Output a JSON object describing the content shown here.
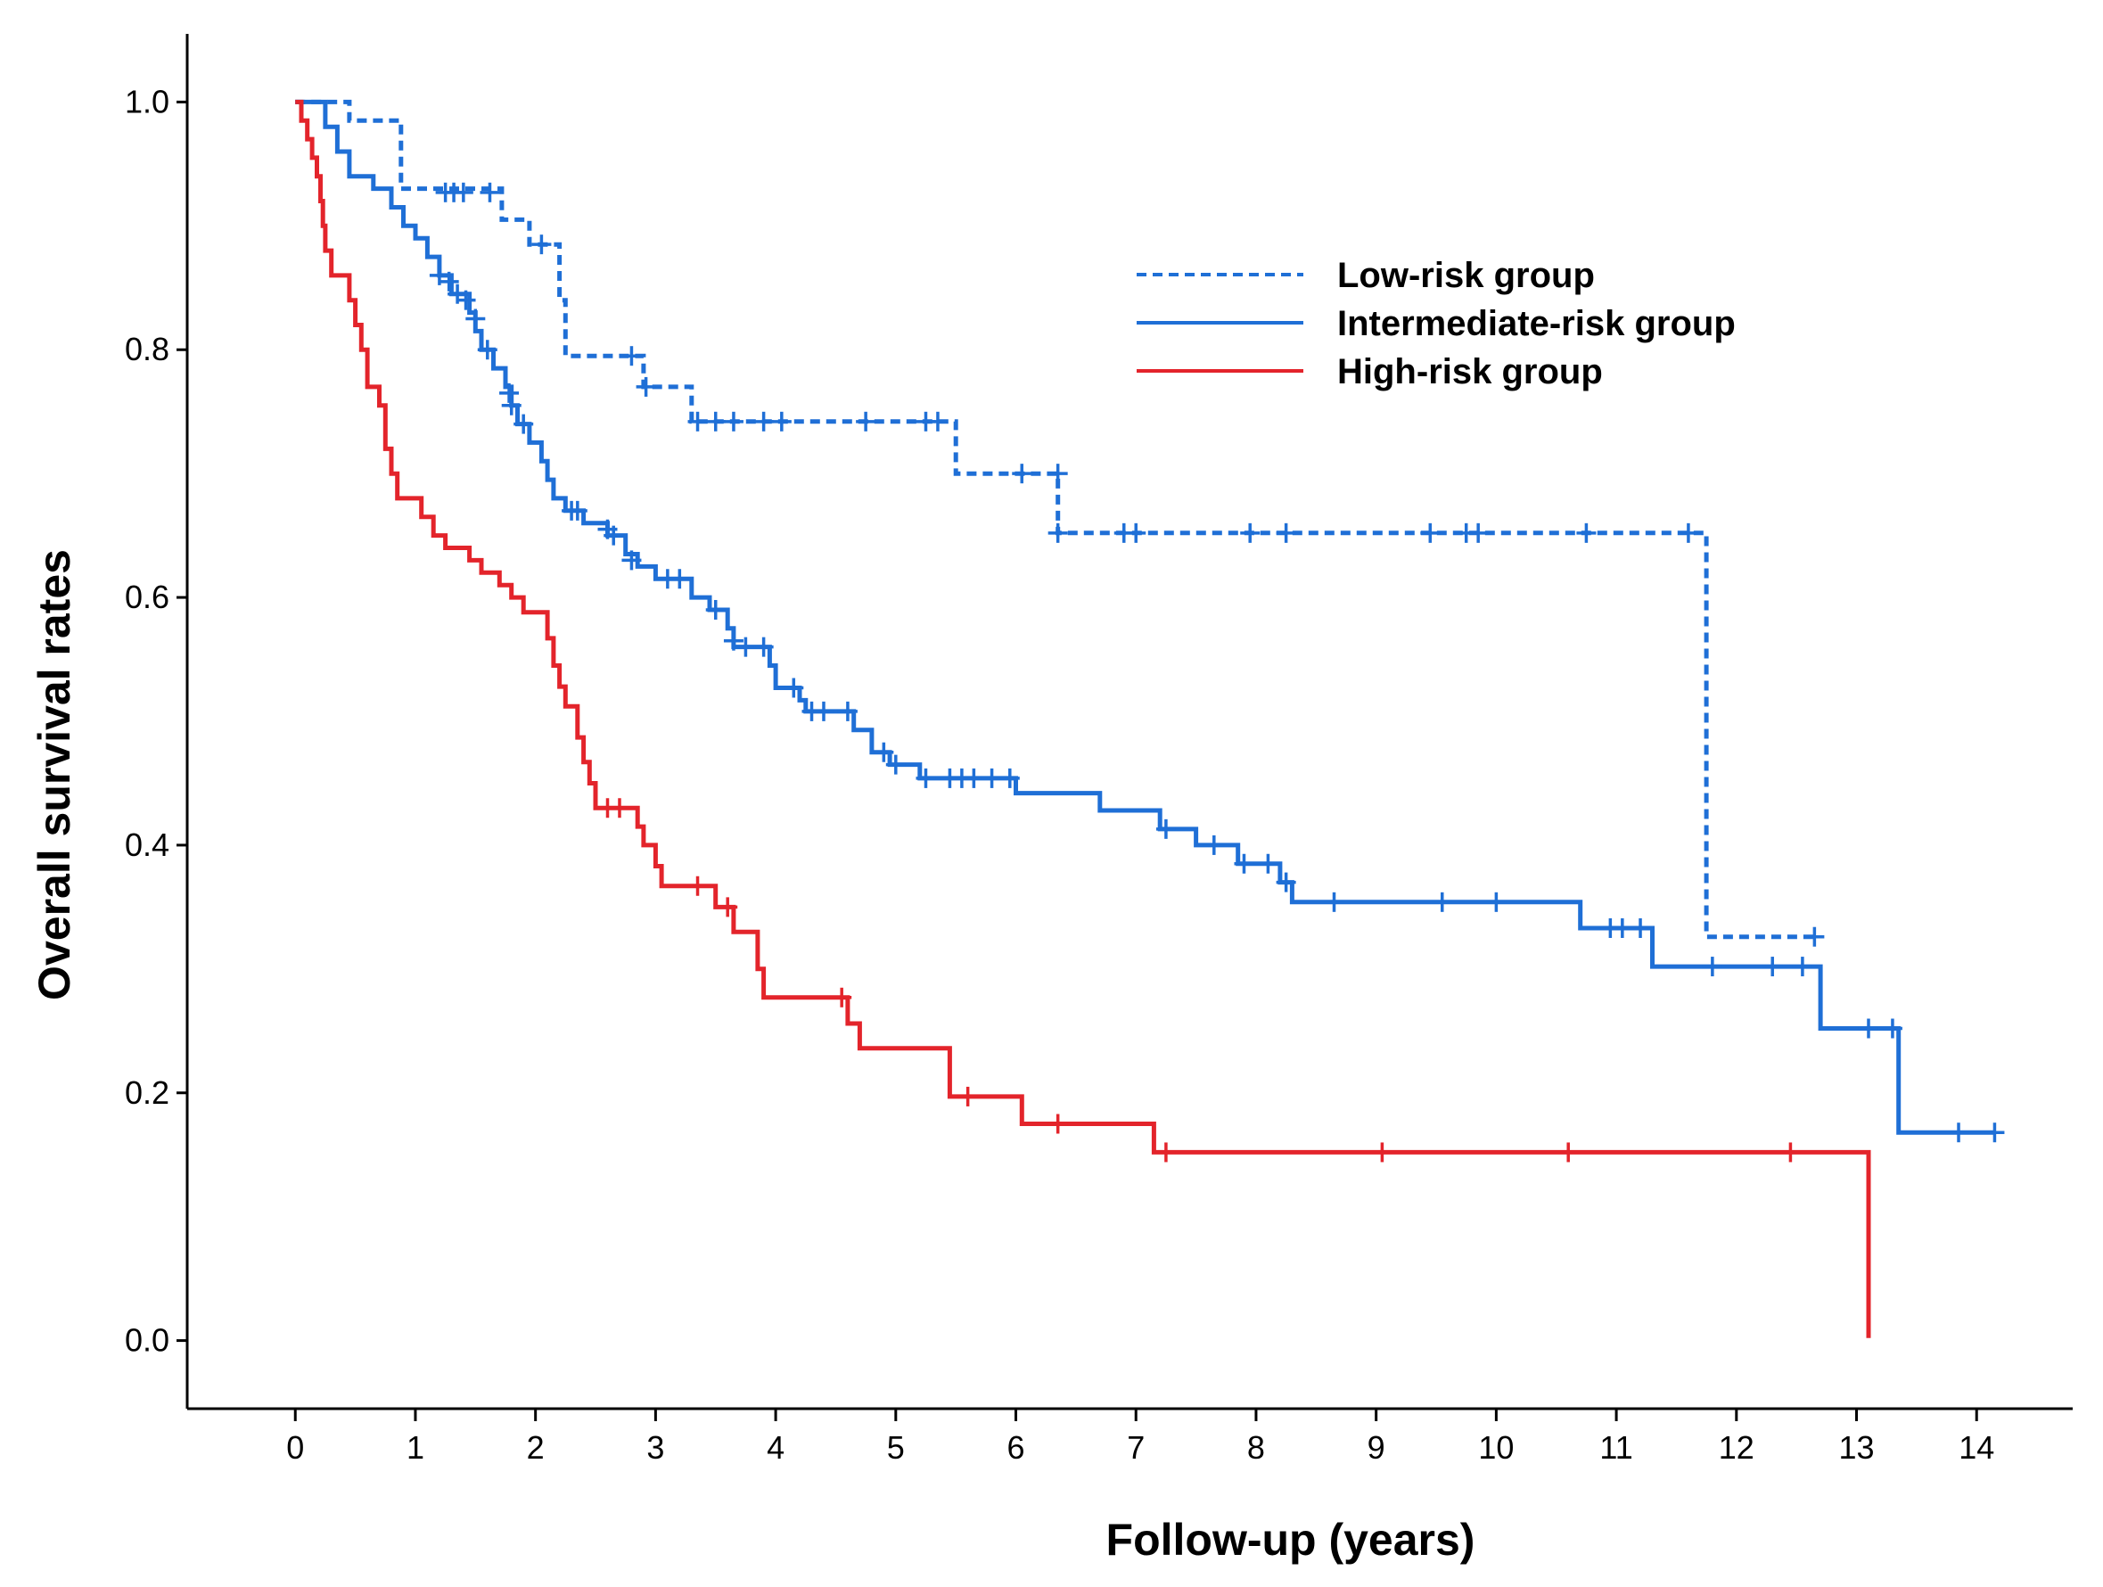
{
  "chart_data": {
    "type": "line",
    "subtype": "kaplan-meier",
    "title": "",
    "xlabel": "Follow-up (years)",
    "ylabel": "Overall survival rates",
    "xlim": [
      -0.9,
      14.8
    ],
    "ylim": [
      -0.055,
      1.055
    ],
    "x_ticks": [
      0,
      1,
      2,
      3,
      4,
      5,
      6,
      7,
      8,
      9,
      10,
      11,
      12,
      13,
      14
    ],
    "y_ticks": [
      0.0,
      0.2,
      0.4,
      0.6,
      0.8,
      1.0
    ],
    "y_tick_labels": [
      "0.0",
      "0.2",
      "0.4",
      "0.6",
      "0.8",
      "1.0"
    ],
    "legend_position": "top-right",
    "series": [
      {
        "name": "Low-risk group",
        "color": "#1f6fd6",
        "dash": "dashed",
        "steps": [
          [
            0,
            1.0
          ],
          [
            0.45,
            1.0
          ],
          [
            0.45,
            0.985
          ],
          [
            0.88,
            0.985
          ],
          [
            0.88,
            0.93
          ],
          [
            1.72,
            0.93
          ],
          [
            1.72,
            0.905
          ],
          [
            1.95,
            0.905
          ],
          [
            1.95,
            0.885
          ],
          [
            2.2,
            0.885
          ],
          [
            2.2,
            0.84
          ],
          [
            2.25,
            0.84
          ],
          [
            2.25,
            0.795
          ],
          [
            2.9,
            0.795
          ],
          [
            2.9,
            0.77
          ],
          [
            3.3,
            0.77
          ],
          [
            3.3,
            0.742
          ],
          [
            5.5,
            0.742
          ],
          [
            5.5,
            0.7
          ],
          [
            6.35,
            0.7
          ],
          [
            6.35,
            0.652
          ],
          [
            11.75,
            0.652
          ],
          [
            11.75,
            0.326
          ],
          [
            12.65,
            0.326
          ]
        ],
        "censors": [
          [
            1.25,
            0.927
          ],
          [
            1.32,
            0.927
          ],
          [
            1.4,
            0.927
          ],
          [
            1.62,
            0.927
          ],
          [
            2.05,
            0.885
          ],
          [
            2.8,
            0.795
          ],
          [
            2.92,
            0.77
          ],
          [
            3.35,
            0.742
          ],
          [
            3.5,
            0.742
          ],
          [
            3.65,
            0.742
          ],
          [
            3.9,
            0.742
          ],
          [
            4.05,
            0.742
          ],
          [
            4.75,
            0.742
          ],
          [
            5.25,
            0.742
          ],
          [
            5.35,
            0.742
          ],
          [
            6.05,
            0.7
          ],
          [
            6.35,
            0.7
          ],
          [
            6.35,
            0.652
          ],
          [
            6.9,
            0.652
          ],
          [
            7.0,
            0.652
          ],
          [
            7.95,
            0.652
          ],
          [
            8.25,
            0.652
          ],
          [
            9.45,
            0.652
          ],
          [
            9.75,
            0.652
          ],
          [
            9.85,
            0.652
          ],
          [
            10.75,
            0.652
          ],
          [
            11.6,
            0.652
          ],
          [
            12.65,
            0.326
          ]
        ]
      },
      {
        "name": "Intermediate-risk group",
        "color": "#1f6fd6",
        "dash": "solid",
        "steps": [
          [
            0,
            1.0
          ],
          [
            0.25,
            1.0
          ],
          [
            0.25,
            0.98
          ],
          [
            0.35,
            0.98
          ],
          [
            0.35,
            0.96
          ],
          [
            0.45,
            0.96
          ],
          [
            0.45,
            0.94
          ],
          [
            0.65,
            0.94
          ],
          [
            0.65,
            0.93
          ],
          [
            0.8,
            0.93
          ],
          [
            0.8,
            0.915
          ],
          [
            0.9,
            0.915
          ],
          [
            0.9,
            0.9
          ],
          [
            1.0,
            0.9
          ],
          [
            1.0,
            0.89
          ],
          [
            1.1,
            0.89
          ],
          [
            1.1,
            0.875
          ],
          [
            1.2,
            0.875
          ],
          [
            1.2,
            0.86
          ],
          [
            1.3,
            0.86
          ],
          [
            1.3,
            0.845
          ],
          [
            1.45,
            0.845
          ],
          [
            1.45,
            0.83
          ],
          [
            1.5,
            0.83
          ],
          [
            1.5,
            0.815
          ],
          [
            1.55,
            0.815
          ],
          [
            1.55,
            0.8
          ],
          [
            1.65,
            0.8
          ],
          [
            1.65,
            0.785
          ],
          [
            1.75,
            0.785
          ],
          [
            1.75,
            0.77
          ],
          [
            1.8,
            0.77
          ],
          [
            1.8,
            0.755
          ],
          [
            1.85,
            0.755
          ],
          [
            1.85,
            0.74
          ],
          [
            1.95,
            0.74
          ],
          [
            1.95,
            0.725
          ],
          [
            2.05,
            0.725
          ],
          [
            2.05,
            0.71
          ],
          [
            2.1,
            0.71
          ],
          [
            2.1,
            0.695
          ],
          [
            2.15,
            0.695
          ],
          [
            2.15,
            0.68
          ],
          [
            2.25,
            0.68
          ],
          [
            2.25,
            0.67
          ],
          [
            2.4,
            0.67
          ],
          [
            2.4,
            0.66
          ],
          [
            2.6,
            0.66
          ],
          [
            2.6,
            0.65
          ],
          [
            2.75,
            0.65
          ],
          [
            2.75,
            0.635
          ],
          [
            2.85,
            0.635
          ],
          [
            2.85,
            0.625
          ],
          [
            3.0,
            0.625
          ],
          [
            3.0,
            0.615
          ],
          [
            3.3,
            0.615
          ],
          [
            3.3,
            0.6
          ],
          [
            3.45,
            0.6
          ],
          [
            3.45,
            0.59
          ],
          [
            3.6,
            0.59
          ],
          [
            3.6,
            0.575
          ],
          [
            3.65,
            0.575
          ],
          [
            3.65,
            0.56
          ],
          [
            3.95,
            0.56
          ],
          [
            3.95,
            0.545
          ],
          [
            4.0,
            0.545
          ],
          [
            4.0,
            0.527
          ],
          [
            4.2,
            0.527
          ],
          [
            4.2,
            0.517
          ],
          [
            4.25,
            0.517
          ],
          [
            4.25,
            0.508
          ],
          [
            4.65,
            0.508
          ],
          [
            4.65,
            0.493
          ],
          [
            4.8,
            0.493
          ],
          [
            4.8,
            0.475
          ],
          [
            4.95,
            0.475
          ],
          [
            4.95,
            0.465
          ],
          [
            5.2,
            0.465
          ],
          [
            5.2,
            0.454
          ],
          [
            6.0,
            0.454
          ],
          [
            6.0,
            0.442
          ],
          [
            6.7,
            0.442
          ],
          [
            6.7,
            0.428
          ],
          [
            7.2,
            0.428
          ],
          [
            7.2,
            0.413
          ],
          [
            7.5,
            0.413
          ],
          [
            7.5,
            0.4
          ],
          [
            7.85,
            0.4
          ],
          [
            7.85,
            0.385
          ],
          [
            8.2,
            0.385
          ],
          [
            8.2,
            0.37
          ],
          [
            8.3,
            0.37
          ],
          [
            8.3,
            0.354
          ],
          [
            10.7,
            0.354
          ],
          [
            10.7,
            0.333
          ],
          [
            11.3,
            0.333
          ],
          [
            11.3,
            0.302
          ],
          [
            12.7,
            0.302
          ],
          [
            12.7,
            0.252
          ],
          [
            13.35,
            0.252
          ],
          [
            13.35,
            0.168
          ],
          [
            14.15,
            0.168
          ]
        ],
        "censors": [
          [
            1.2,
            0.86
          ],
          [
            1.28,
            0.855
          ],
          [
            1.35,
            0.845
          ],
          [
            1.42,
            0.84
          ],
          [
            1.5,
            0.825
          ],
          [
            1.6,
            0.8
          ],
          [
            1.78,
            0.765
          ],
          [
            1.8,
            0.755
          ],
          [
            1.9,
            0.74
          ],
          [
            2.3,
            0.67
          ],
          [
            2.35,
            0.67
          ],
          [
            2.6,
            0.655
          ],
          [
            2.65,
            0.65
          ],
          [
            2.8,
            0.63
          ],
          [
            3.1,
            0.615
          ],
          [
            3.2,
            0.615
          ],
          [
            3.5,
            0.59
          ],
          [
            3.65,
            0.565
          ],
          [
            3.75,
            0.56
          ],
          [
            3.9,
            0.56
          ],
          [
            4.15,
            0.527
          ],
          [
            4.3,
            0.508
          ],
          [
            4.4,
            0.508
          ],
          [
            4.6,
            0.508
          ],
          [
            4.9,
            0.475
          ],
          [
            5.0,
            0.465
          ],
          [
            5.25,
            0.454
          ],
          [
            5.45,
            0.454
          ],
          [
            5.55,
            0.454
          ],
          [
            5.65,
            0.454
          ],
          [
            5.8,
            0.454
          ],
          [
            5.95,
            0.454
          ],
          [
            7.25,
            0.413
          ],
          [
            7.65,
            0.4
          ],
          [
            7.9,
            0.385
          ],
          [
            8.1,
            0.385
          ],
          [
            8.25,
            0.37
          ],
          [
            8.65,
            0.354
          ],
          [
            9.55,
            0.354
          ],
          [
            10.0,
            0.354
          ],
          [
            10.95,
            0.333
          ],
          [
            11.05,
            0.333
          ],
          [
            11.2,
            0.333
          ],
          [
            11.8,
            0.302
          ],
          [
            12.3,
            0.302
          ],
          [
            12.55,
            0.302
          ],
          [
            13.1,
            0.252
          ],
          [
            13.3,
            0.252
          ],
          [
            13.85,
            0.168
          ],
          [
            14.15,
            0.168
          ]
        ]
      },
      {
        "name": "High-risk group",
        "color": "#e3242b",
        "dash": "solid",
        "steps": [
          [
            0,
            1.0
          ],
          [
            0.05,
            1.0
          ],
          [
            0.05,
            0.985
          ],
          [
            0.1,
            0.985
          ],
          [
            0.1,
            0.97
          ],
          [
            0.14,
            0.97
          ],
          [
            0.14,
            0.955
          ],
          [
            0.18,
            0.955
          ],
          [
            0.18,
            0.94
          ],
          [
            0.21,
            0.94
          ],
          [
            0.21,
            0.92
          ],
          [
            0.23,
            0.92
          ],
          [
            0.23,
            0.9
          ],
          [
            0.25,
            0.9
          ],
          [
            0.25,
            0.88
          ],
          [
            0.3,
            0.88
          ],
          [
            0.3,
            0.86
          ],
          [
            0.45,
            0.86
          ],
          [
            0.45,
            0.84
          ],
          [
            0.5,
            0.84
          ],
          [
            0.5,
            0.82
          ],
          [
            0.55,
            0.82
          ],
          [
            0.55,
            0.8
          ],
          [
            0.6,
            0.8
          ],
          [
            0.6,
            0.77
          ],
          [
            0.7,
            0.77
          ],
          [
            0.7,
            0.755
          ],
          [
            0.75,
            0.755
          ],
          [
            0.75,
            0.72
          ],
          [
            0.8,
            0.72
          ],
          [
            0.8,
            0.7
          ],
          [
            0.85,
            0.7
          ],
          [
            0.85,
            0.68
          ],
          [
            1.05,
            0.68
          ],
          [
            1.05,
            0.665
          ],
          [
            1.15,
            0.665
          ],
          [
            1.15,
            0.65
          ],
          [
            1.25,
            0.65
          ],
          [
            1.25,
            0.64
          ],
          [
            1.45,
            0.64
          ],
          [
            1.45,
            0.63
          ],
          [
            1.55,
            0.63
          ],
          [
            1.55,
            0.62
          ],
          [
            1.7,
            0.62
          ],
          [
            1.7,
            0.61
          ],
          [
            1.8,
            0.61
          ],
          [
            1.8,
            0.6
          ],
          [
            1.9,
            0.6
          ],
          [
            1.9,
            0.588
          ],
          [
            2.1,
            0.588
          ],
          [
            2.1,
            0.567
          ],
          [
            2.15,
            0.567
          ],
          [
            2.15,
            0.545
          ],
          [
            2.2,
            0.545
          ],
          [
            2.2,
            0.528
          ],
          [
            2.25,
            0.528
          ],
          [
            2.25,
            0.512
          ],
          [
            2.35,
            0.512
          ],
          [
            2.35,
            0.487
          ],
          [
            2.4,
            0.487
          ],
          [
            2.4,
            0.467
          ],
          [
            2.45,
            0.467
          ],
          [
            2.45,
            0.45
          ],
          [
            2.5,
            0.45
          ],
          [
            2.5,
            0.43
          ],
          [
            2.85,
            0.43
          ],
          [
            2.85,
            0.415
          ],
          [
            2.9,
            0.415
          ],
          [
            2.9,
            0.4
          ],
          [
            3.0,
            0.4
          ],
          [
            3.0,
            0.383
          ],
          [
            3.05,
            0.383
          ],
          [
            3.05,
            0.367
          ],
          [
            3.5,
            0.367
          ],
          [
            3.5,
            0.35
          ],
          [
            3.65,
            0.35
          ],
          [
            3.65,
            0.33
          ],
          [
            3.85,
            0.33
          ],
          [
            3.85,
            0.3
          ],
          [
            3.9,
            0.3
          ],
          [
            3.9,
            0.277
          ],
          [
            4.6,
            0.277
          ],
          [
            4.6,
            0.256
          ],
          [
            4.7,
            0.256
          ],
          [
            4.7,
            0.236
          ],
          [
            5.45,
            0.236
          ],
          [
            5.45,
            0.197
          ],
          [
            6.05,
            0.197
          ],
          [
            6.05,
            0.175
          ],
          [
            7.15,
            0.175
          ],
          [
            7.15,
            0.152
          ],
          [
            13.1,
            0.152
          ],
          [
            13.1,
            0.002
          ]
        ],
        "censors": [
          [
            2.6,
            0.43
          ],
          [
            2.7,
            0.43
          ],
          [
            3.35,
            0.367
          ],
          [
            3.6,
            0.35
          ],
          [
            4.55,
            0.277
          ],
          [
            5.6,
            0.197
          ],
          [
            6.35,
            0.175
          ],
          [
            7.25,
            0.152
          ],
          [
            9.05,
            0.152
          ],
          [
            10.6,
            0.152
          ],
          [
            12.45,
            0.152
          ]
        ]
      }
    ]
  }
}
